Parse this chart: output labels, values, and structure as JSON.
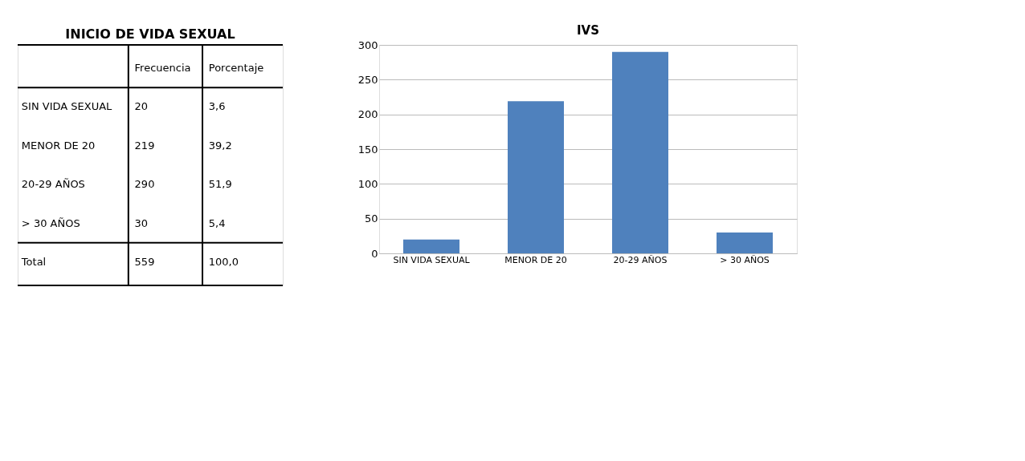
{
  "chart_data": [
    {
      "type": "other",
      "title": "INICIO DE VIDA SEXUAL",
      "data_labels": true,
      "categories": [
        "SIN VIDA SEXUAL",
        "MENOR DE 20",
        "20-29 AÑOS",
        "> 30 AÑOS",
        "Total"
      ],
      "series": [
        {
          "name": "Frecuencia",
          "values": [
            20,
            219,
            290,
            30,
            559
          ]
        },
        {
          "name": "Porcentaje",
          "values": [
            3.6,
            39.2,
            51.9,
            5.4,
            100.0
          ],
          "value_labels": [
            "3,6",
            "39,2",
            "51,9",
            "5,4",
            "100,0"
          ]
        }
      ]
    },
    {
      "type": "bar",
      "title": "IVS",
      "categories": [
        "SIN VIDA SEXUAL",
        "MENOR DE 20",
        "20-29 AÑOS",
        "> 30 AÑOS"
      ],
      "values": [
        20,
        219,
        290,
        30
      ],
      "color": "#4f81bd",
      "ylim": [
        0,
        300
      ],
      "yticks": [
        0,
        50,
        100,
        150,
        200,
        250,
        300
      ],
      "grid": "y"
    }
  ]
}
